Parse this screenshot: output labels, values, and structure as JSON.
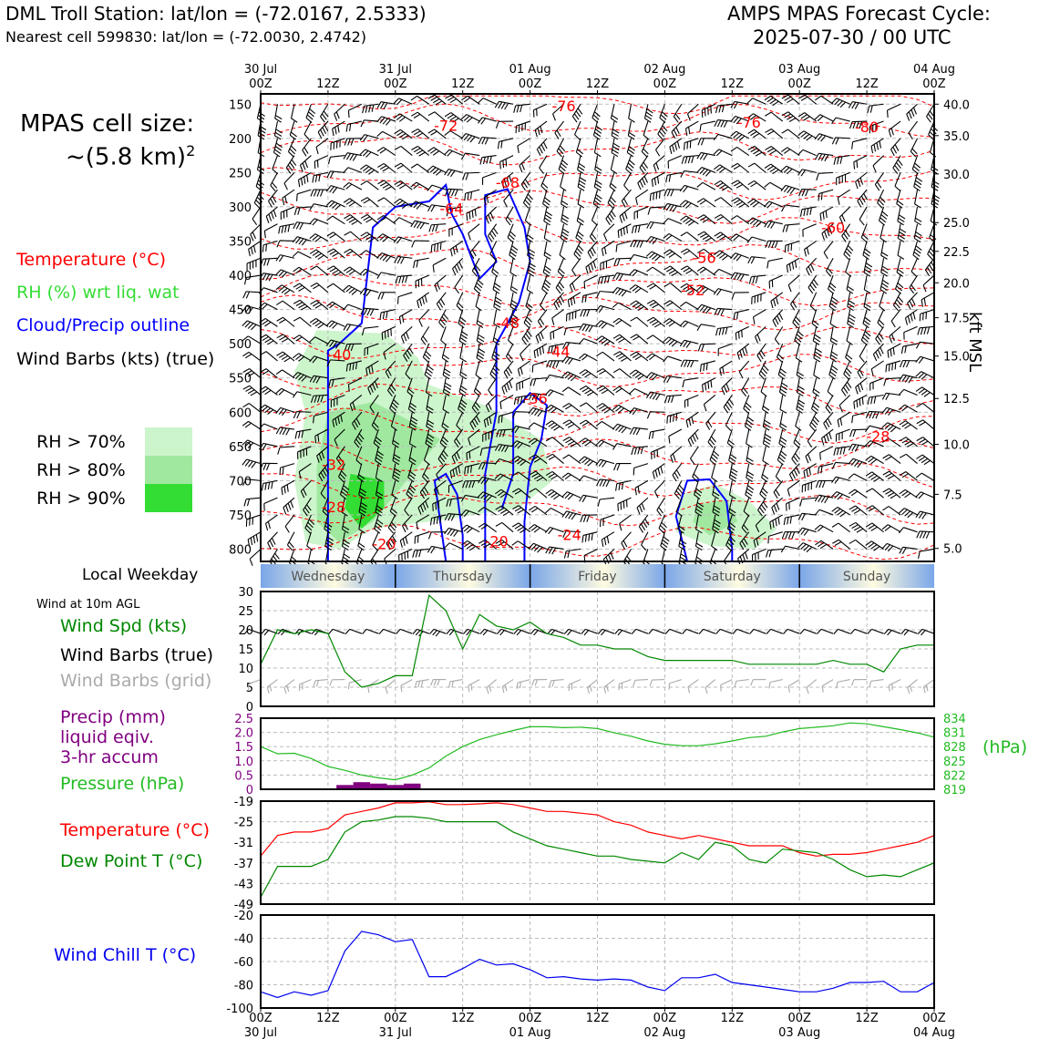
{
  "header": {
    "station_title": "DML Troll Station: lat/lon = (-72.0167, 2.5333)",
    "nearest_cell": "Nearest cell 599830: lat/lon = (-72.0030, 2.4742)",
    "forecast_title": "AMPS MPAS Forecast Cycle:",
    "forecast_cycle": "2025-07-30 / 00 UTC"
  },
  "sidebar": {
    "cell_size_line1": "MPAS cell size:",
    "cell_size_line2": "~(5.8 km)",
    "cell_size_exp": "2",
    "legend_temperature": "Temperature (°C)",
    "legend_rh": "RH (%) wrt liq. wat",
    "legend_cloud": "Cloud/Precip outline",
    "legend_wind": "Wind Barbs (kts) (true)",
    "rh_levels": [
      "RH > 70%",
      "RH > 80%",
      "RH > 90%"
    ],
    "local_weekday": "Local Weekday",
    "wind_10m": "Wind at 10m AGL",
    "wind_spd": "Wind Spd (kts)",
    "wind_barbs_true": "Wind Barbs (true)",
    "wind_barbs_grid": "Wind Barbs (grid)",
    "precip_1": "Precip (mm)",
    "precip_2": "liquid eqiv.",
    "precip_3": "3-hr accum",
    "pressure": "Pressure (hPa)",
    "pressure_unit": "(hPa)",
    "temperature": "Temperature (°C)",
    "dewpoint": "Dew Point T (°C)",
    "windchill": "Wind Chill T (°C)",
    "kft_label": "kft MSL"
  },
  "colors": {
    "temperature": "#ff0000",
    "rh_legend": "#33dd33",
    "cloud": "#0000ff",
    "wind_spd": "#008800",
    "barbs_grid": "#aaaaaa",
    "precip": "#800080",
    "pressure": "#22bb22",
    "dewpoint": "#008800",
    "windchill": "#0000ee",
    "rh70": "#ccf5cc",
    "rh80": "#a0e8a0",
    "rh90": "#33dd33"
  },
  "chart_data": [
    {
      "type": "line",
      "title": "Vertical cross-section",
      "x": [
        "30 Jul 00Z",
        "12Z",
        "31 Jul 00Z",
        "12Z",
        "01 Aug 00Z",
        "12Z",
        "02 Aug 00Z",
        "12Z",
        "03 Aug 00Z",
        "12Z",
        "04 Aug 00Z"
      ],
      "top_day_labels": [
        "30 Jul",
        "",
        "31 Jul",
        "",
        "01 Aug",
        "",
        "02 Aug",
        "",
        "03 Aug",
        "",
        "04 Aug"
      ],
      "top_hour_labels": [
        "00Z",
        "12Z",
        "00Z",
        "12Z",
        "00Z",
        "12Z",
        "00Z",
        "12Z",
        "00Z",
        "12Z",
        "00Z"
      ],
      "pressure_ticks": [
        150,
        200,
        250,
        300,
        350,
        400,
        450,
        500,
        550,
        600,
        650,
        700,
        750,
        800
      ],
      "kft_ticks": [
        {
          "p": 150,
          "label": "40.0"
        },
        {
          "p": 196,
          "label": "35.0"
        },
        {
          "p": 252,
          "label": "30.0"
        },
        {
          "p": 323,
          "label": "25.0"
        },
        {
          "p": 365,
          "label": "22.5"
        },
        {
          "p": 411,
          "label": "20.0"
        },
        {
          "p": 462,
          "label": "17.5"
        },
        {
          "p": 518,
          "label": "15.0"
        },
        {
          "p": 580,
          "label": "12.5"
        },
        {
          "p": 647,
          "label": "10.0"
        },
        {
          "p": 720,
          "label": "7.5"
        },
        {
          "p": 799,
          "label": "5.0"
        }
      ],
      "ylim": [
        135,
        818
      ],
      "temperature_labels": [
        {
          "h": 33,
          "p": 189,
          "text": "-72"
        },
        {
          "h": 54,
          "p": 160,
          "text": "-76"
        },
        {
          "h": 87,
          "p": 184,
          "text": "-76"
        },
        {
          "h": 108,
          "p": 191,
          "text": "-80"
        },
        {
          "h": 44,
          "p": 272,
          "text": "-68"
        },
        {
          "h": 34,
          "p": 310,
          "text": "-64"
        },
        {
          "h": 102,
          "p": 338,
          "text": "-60"
        },
        {
          "h": 79,
          "p": 382,
          "text": "-56"
        },
        {
          "h": 77,
          "p": 429,
          "text": "-52"
        },
        {
          "h": 44,
          "p": 477,
          "text": "-48"
        },
        {
          "h": 53,
          "p": 519,
          "text": "-44"
        },
        {
          "h": 14,
          "p": 524,
          "text": "-40"
        },
        {
          "h": 49,
          "p": 588,
          "text": "-36"
        },
        {
          "h": 110,
          "p": 643,
          "text": "-28"
        },
        {
          "h": 13,
          "p": 684,
          "text": "-32"
        },
        {
          "h": 13,
          "p": 746,
          "text": "-28"
        },
        {
          "h": 55,
          "p": 787,
          "text": "-24"
        },
        {
          "h": 22,
          "p": 800,
          "text": "-20"
        },
        {
          "h": 42,
          "p": 796,
          "text": "-20"
        }
      ],
      "weekday_labels": [
        "Wednesday",
        "Thursday",
        "Friday",
        "Saturday",
        "Sunday"
      ]
    },
    {
      "type": "line",
      "title": "Wind at 10m AGL",
      "ylabel": "Wind Spd (kts)",
      "ylim": [
        0,
        30
      ],
      "yticks": [
        0,
        5,
        10,
        15,
        20,
        25,
        30
      ],
      "x_hours": [
        0,
        3,
        6,
        9,
        12,
        15,
        18,
        21,
        24,
        27,
        30,
        33,
        36,
        39,
        42,
        45,
        48,
        51,
        54,
        57,
        60,
        63,
        66,
        69,
        72,
        75,
        78,
        81,
        84,
        87,
        90,
        93,
        96,
        99,
        102,
        105,
        108,
        111,
        114,
        117,
        120
      ],
      "series": [
        {
          "name": "Wind Spd (kts)",
          "values": [
            11,
            20,
            19,
            20,
            19,
            9,
            5,
            6,
            8,
            8,
            29,
            25,
            15,
            24,
            21,
            20,
            22,
            19,
            18,
            16,
            16,
            15,
            15,
            13,
            12,
            12,
            12,
            12,
            12,
            11,
            11,
            11,
            11,
            11,
            12,
            11,
            11,
            9,
            15,
            16,
            16
          ]
        }
      ]
    },
    {
      "type": "bar",
      "title": "Precip / Pressure",
      "ylabel": "Precip (mm)",
      "ylim": [
        0,
        2.5
      ],
      "yticks": [
        0,
        0.5,
        1.0,
        1.5,
        2.0,
        2.5
      ],
      "ytick_labels": [
        "0",
        "0.5",
        "1.0",
        "1.5",
        "2.0",
        "2.5"
      ],
      "precip_x_hours": [
        15,
        18,
        21,
        24,
        27
      ],
      "precip_values": [
        0.15,
        0.25,
        0.2,
        0.15,
        0.2
      ],
      "pressure_ylim": [
        819,
        834
      ],
      "pressure_ticks": [
        834,
        831,
        828,
        825,
        822,
        819
      ],
      "series": [
        {
          "name": "Pressure (hPa)",
          "values": [
            828.0,
            826.5,
            826.6,
            825.5,
            823.8,
            823.0,
            822.0,
            821.4,
            821.0,
            822.0,
            823.5,
            826.0,
            828.0,
            829.5,
            830.5,
            831.4,
            832.2,
            832.2,
            832.0,
            832.1,
            831.8,
            830.9,
            830.2,
            829.2,
            828.5,
            828.2,
            828.2,
            828.6,
            829.2,
            829.9,
            830.2,
            831.1,
            831.8,
            832.1,
            832.4,
            833.0,
            832.8,
            832.2,
            831.6,
            830.9,
            830.0
          ]
        }
      ]
    },
    {
      "type": "line",
      "title": "Temperature and Dew Point",
      "ylabel": "Temperature (°C)",
      "ylim": [
        -49,
        -19
      ],
      "yticks": [
        -49,
        -43,
        -37,
        -31,
        -25,
        -19
      ],
      "series": [
        {
          "name": "Temperature (°C)",
          "values": [
            -35,
            -29,
            -28,
            -28,
            -27,
            -23,
            -22,
            -21,
            -19.5,
            -19.5,
            -19.2,
            -20,
            -20,
            -19.8,
            -19.5,
            -20,
            -21,
            -22,
            -22,
            -22.5,
            -23,
            -25,
            -26,
            -28,
            -29,
            -30,
            -29,
            -30,
            -31,
            -32,
            -32,
            -32,
            -34,
            -35,
            -34.5,
            -34.5,
            -34,
            -33,
            -32,
            -31,
            -29
          ]
        },
        {
          "name": "Dew Point T (°C)",
          "values": [
            -47,
            -38,
            -38,
            -38,
            -36,
            -28,
            -25,
            -24.5,
            -23.5,
            -23.5,
            -24,
            -25,
            -25,
            -25,
            -25,
            -28,
            -30,
            -32,
            -33,
            -34,
            -35,
            -35,
            -36,
            -36.5,
            -37,
            -34,
            -36,
            -31,
            -32,
            -36,
            -37,
            -33,
            -33.5,
            -34,
            -36,
            -39,
            -41,
            -40.5,
            -41,
            -39,
            -37
          ]
        }
      ]
    },
    {
      "type": "line",
      "title": "Wind Chill",
      "ylabel": "Wind Chill T (°C)",
      "ylim": [
        -100,
        -20
      ],
      "yticks": [
        -100,
        -80,
        -60,
        -40,
        -20
      ],
      "series": [
        {
          "name": "Wind Chill T (°C)",
          "values": [
            -86,
            -91,
            -86,
            -89,
            -85,
            -51,
            -34,
            -37,
            -43,
            -41,
            -73,
            -73,
            -66,
            -58,
            -63,
            -62,
            -67,
            -74,
            -73,
            -75,
            -76,
            -75,
            -76,
            -82,
            -85,
            -74,
            -74,
            -71,
            -78,
            -80,
            -82,
            -84,
            -86,
            -86,
            -83,
            -78,
            -78,
            -77,
            -86,
            -86,
            -78
          ]
        }
      ]
    }
  ],
  "bottom_axis": {
    "hour_labels": [
      "00Z",
      "12Z",
      "00Z",
      "12Z",
      "00Z",
      "12Z",
      "00Z",
      "12Z",
      "00Z",
      "12Z",
      "00Z"
    ],
    "day_labels": [
      "30 Jul",
      "",
      "31 Jul",
      "",
      "01 Aug",
      "",
      "02 Aug",
      "",
      "03 Aug",
      "",
      "04 Aug"
    ]
  }
}
